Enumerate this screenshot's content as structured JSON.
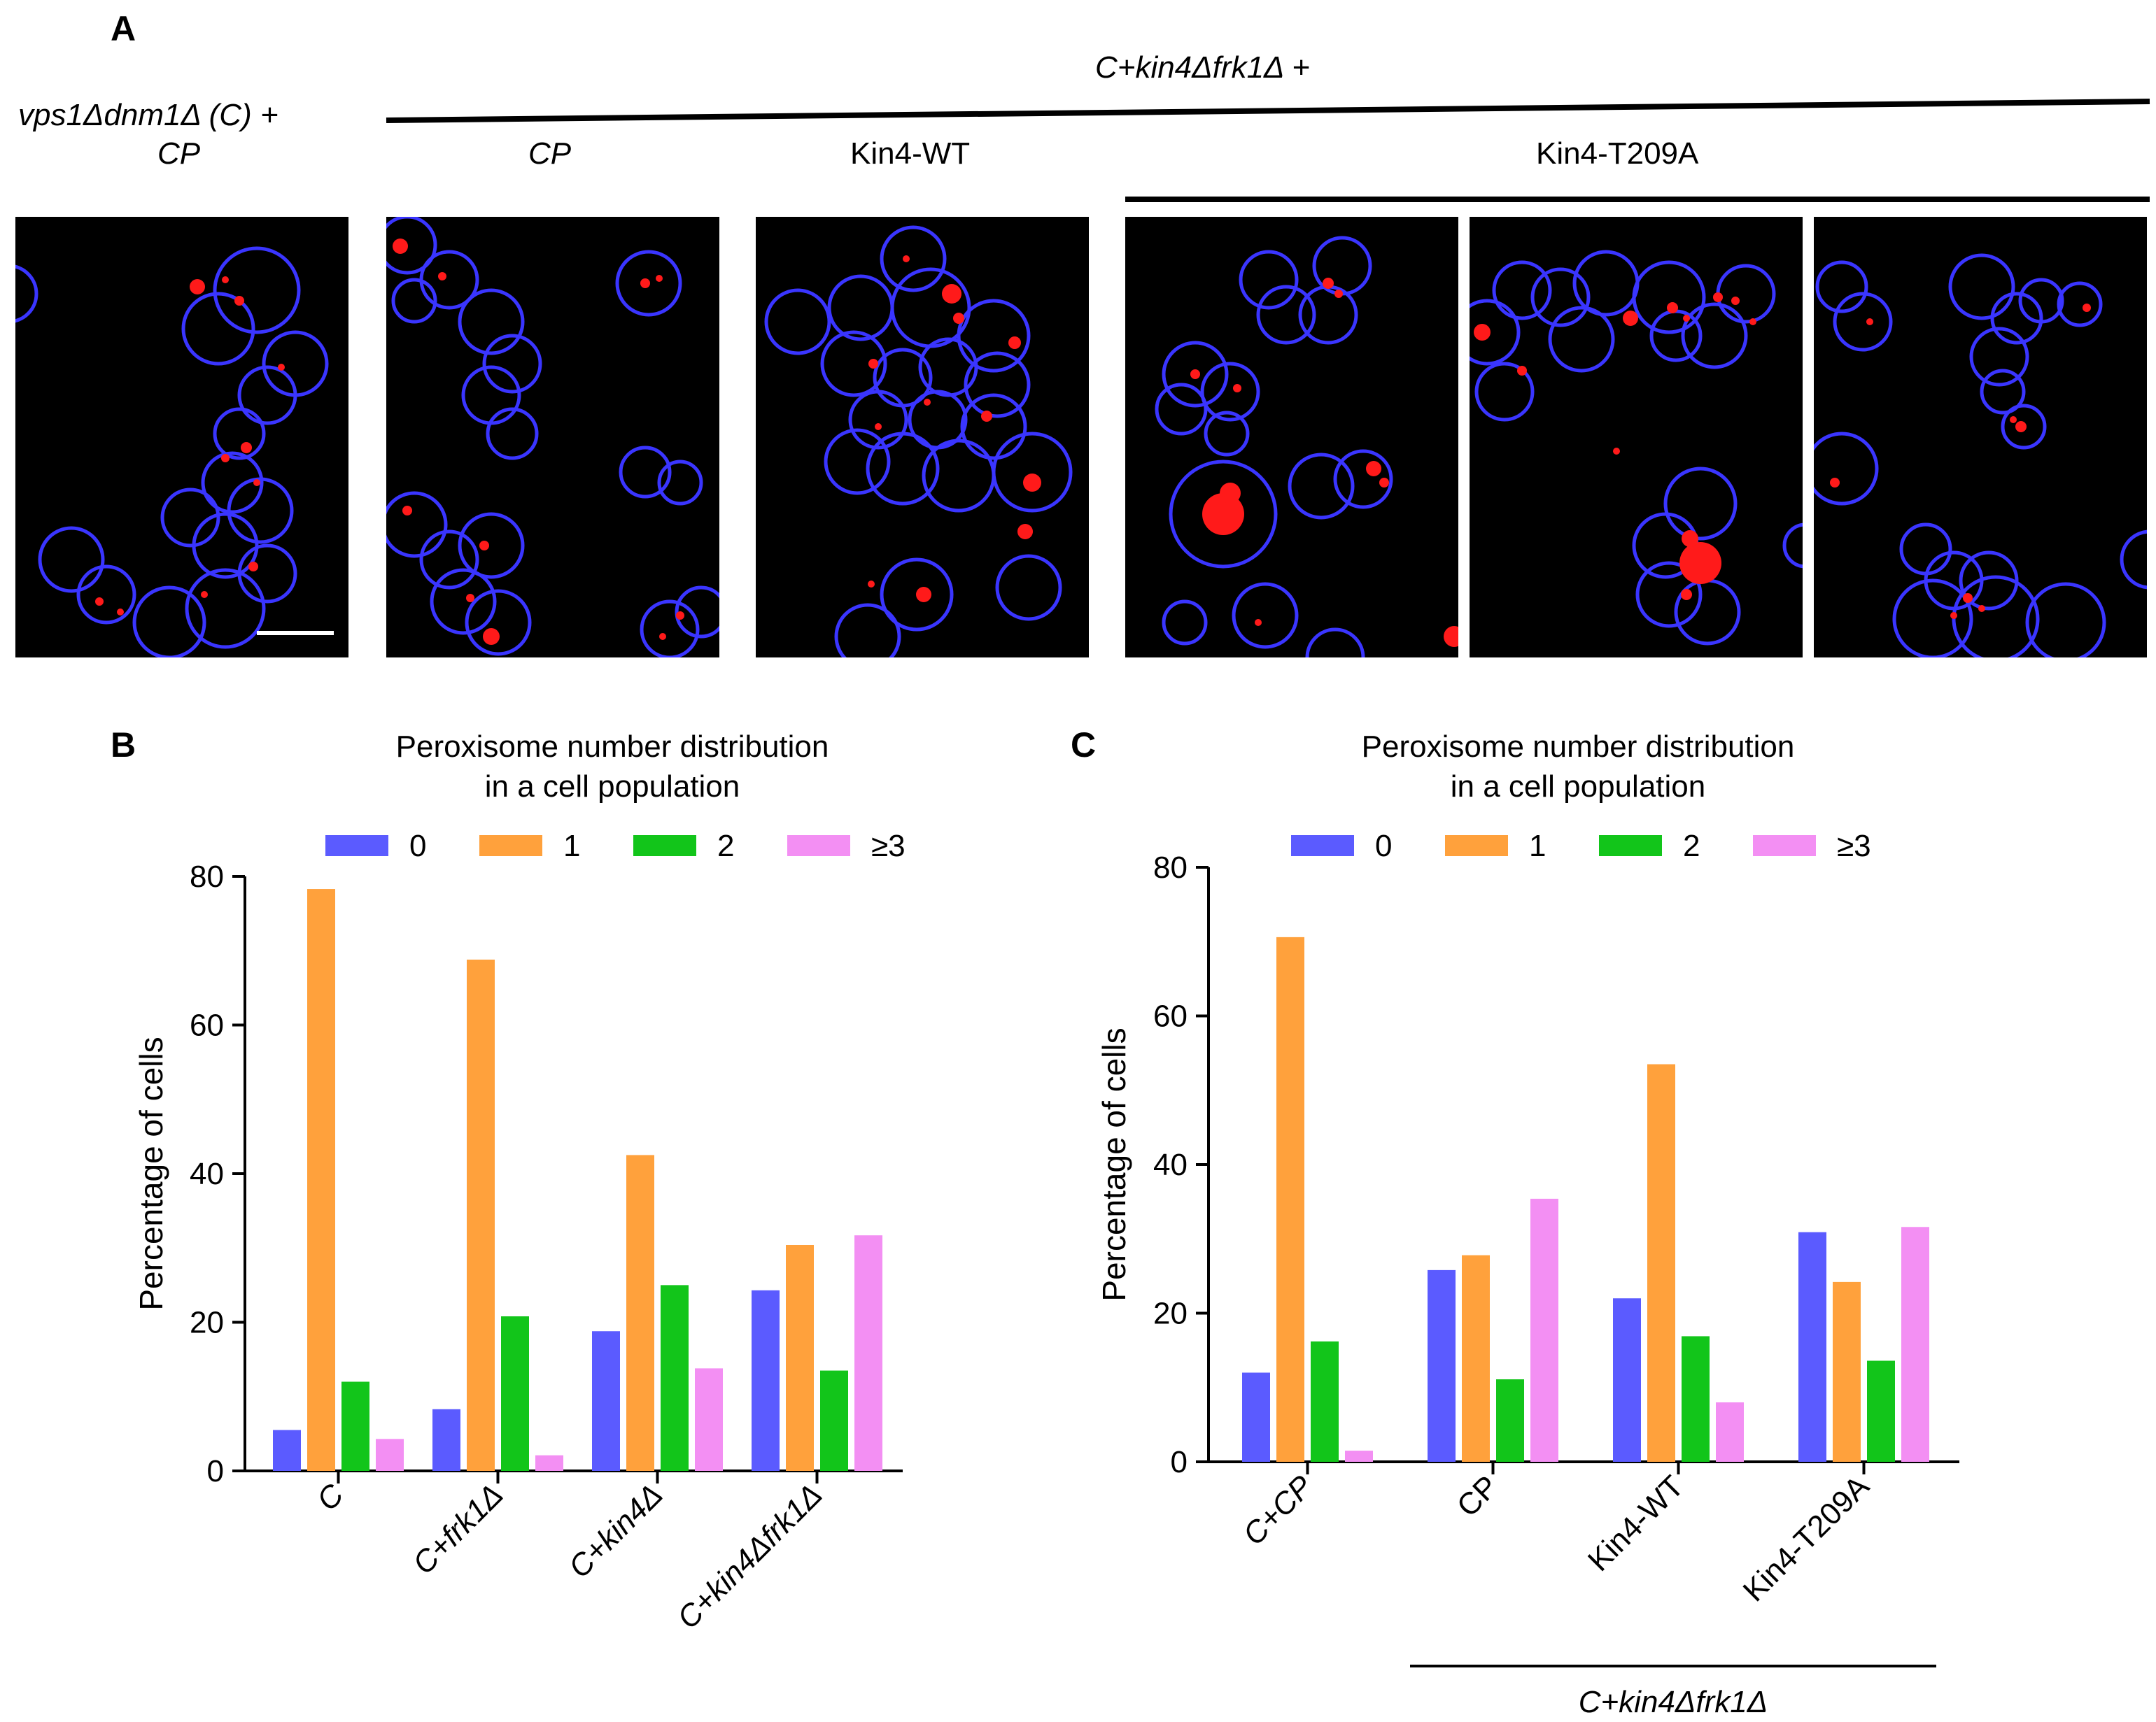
{
  "panel_a": {
    "letter": "A",
    "left_label_line1": "vps1Δdnm1Δ (C) +",
    "left_label_line2": "CP",
    "top_group_label": "C+kin4Δfrk1Δ +",
    "col_labels": [
      "CP",
      "Kin4-WT",
      "Kin4-T209A"
    ]
  },
  "legend": [
    {
      "label": "0",
      "color": "#5b5bff"
    },
    {
      "label": "1",
      "color": "#ffa13c"
    },
    {
      "label": "2",
      "color": "#12c51a"
    },
    {
      "label": "≥3",
      "color": "#f38ff3"
    }
  ],
  "chart_data": [
    {
      "panel": "B",
      "type": "bar",
      "title_line1": "Peroxisome number distribution",
      "title_line2": "in a cell population",
      "ylabel": "Percentage of cells",
      "xlabel": "",
      "ylim": [
        0,
        80
      ],
      "yticks": [
        "0",
        "20",
        "40",
        "60",
        "80"
      ],
      "categories": [
        "C",
        "C+frk1Δ",
        "C+kin4Δ",
        "C+kin4Δfrk1Δ"
      ],
      "series": [
        {
          "name": "0",
          "values": [
            5.5,
            8.3,
            18.8,
            24.3
          ]
        },
        {
          "name": "1",
          "values": [
            78.3,
            68.8,
            42.5,
            30.4
          ]
        },
        {
          "name": "2",
          "values": [
            12.0,
            20.8,
            25.0,
            13.5
          ]
        },
        {
          "name": "≥3",
          "values": [
            4.3,
            2.1,
            13.8,
            31.7
          ]
        }
      ]
    },
    {
      "panel": "C",
      "type": "bar",
      "title_line1": "Peroxisome number distribution",
      "title_line2": "in a cell population",
      "ylabel": "Percentage of cells",
      "xlabel": "C+kin4Δfrk1Δ",
      "ylim": [
        0,
        80
      ],
      "yticks": [
        "0",
        "20",
        "40",
        "60",
        "80"
      ],
      "categories": [
        "C+CP",
        "CP",
        "Kin4-WT",
        "Kin4-T209A"
      ],
      "series": [
        {
          "name": "0",
          "values": [
            12.0,
            25.8,
            22.0,
            30.9
          ]
        },
        {
          "name": "1",
          "values": [
            70.6,
            27.8,
            53.5,
            24.2
          ]
        },
        {
          "name": "2",
          "values": [
            16.2,
            11.1,
            16.9,
            13.6
          ]
        },
        {
          "name": "≥3",
          "values": [
            1.5,
            35.4,
            8.0,
            31.6
          ]
        }
      ]
    }
  ]
}
